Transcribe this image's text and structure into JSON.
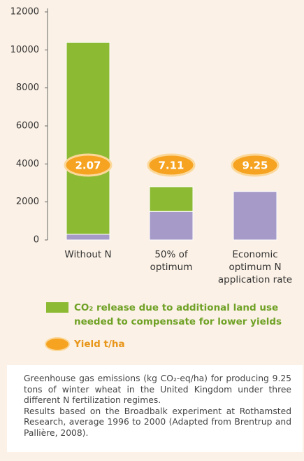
{
  "chart_data": {
    "type": "bar",
    "categories": [
      [
        "Without N"
      ],
      [
        "50% of",
        "optimum"
      ],
      [
        "Economic",
        "optimum N",
        "application rate"
      ]
    ],
    "series": [
      {
        "color": "#a69ac9",
        "values": [
          300,
          1500,
          2550
        ]
      },
      {
        "name": "CO₂ release due to additional land use needed to compensate for lower yields",
        "color": "#8dba33",
        "values": [
          10100,
          1300,
          0
        ]
      }
    ],
    "yields": {
      "name": "Yield t/ha",
      "color": "#f6a321",
      "values": [
        2.07,
        7.11,
        9.25
      ]
    },
    "ylim": [
      0,
      12000
    ],
    "yticks": [
      0,
      2000,
      4000,
      6000,
      8000,
      10000,
      12000
    ],
    "stacked": true,
    "caption": [
      "Greenhouse gas emissions (kg CO₂-eq/ha) for producing 9.25 tons of winter wheat in the United Kingdom under three different N fertilization regimes.",
      "Results based on the Broadbalk experiment at Rothamsted Research, average 1996 to 2000 (Adapted from Brentrup and Pallière, 2008)."
    ]
  }
}
